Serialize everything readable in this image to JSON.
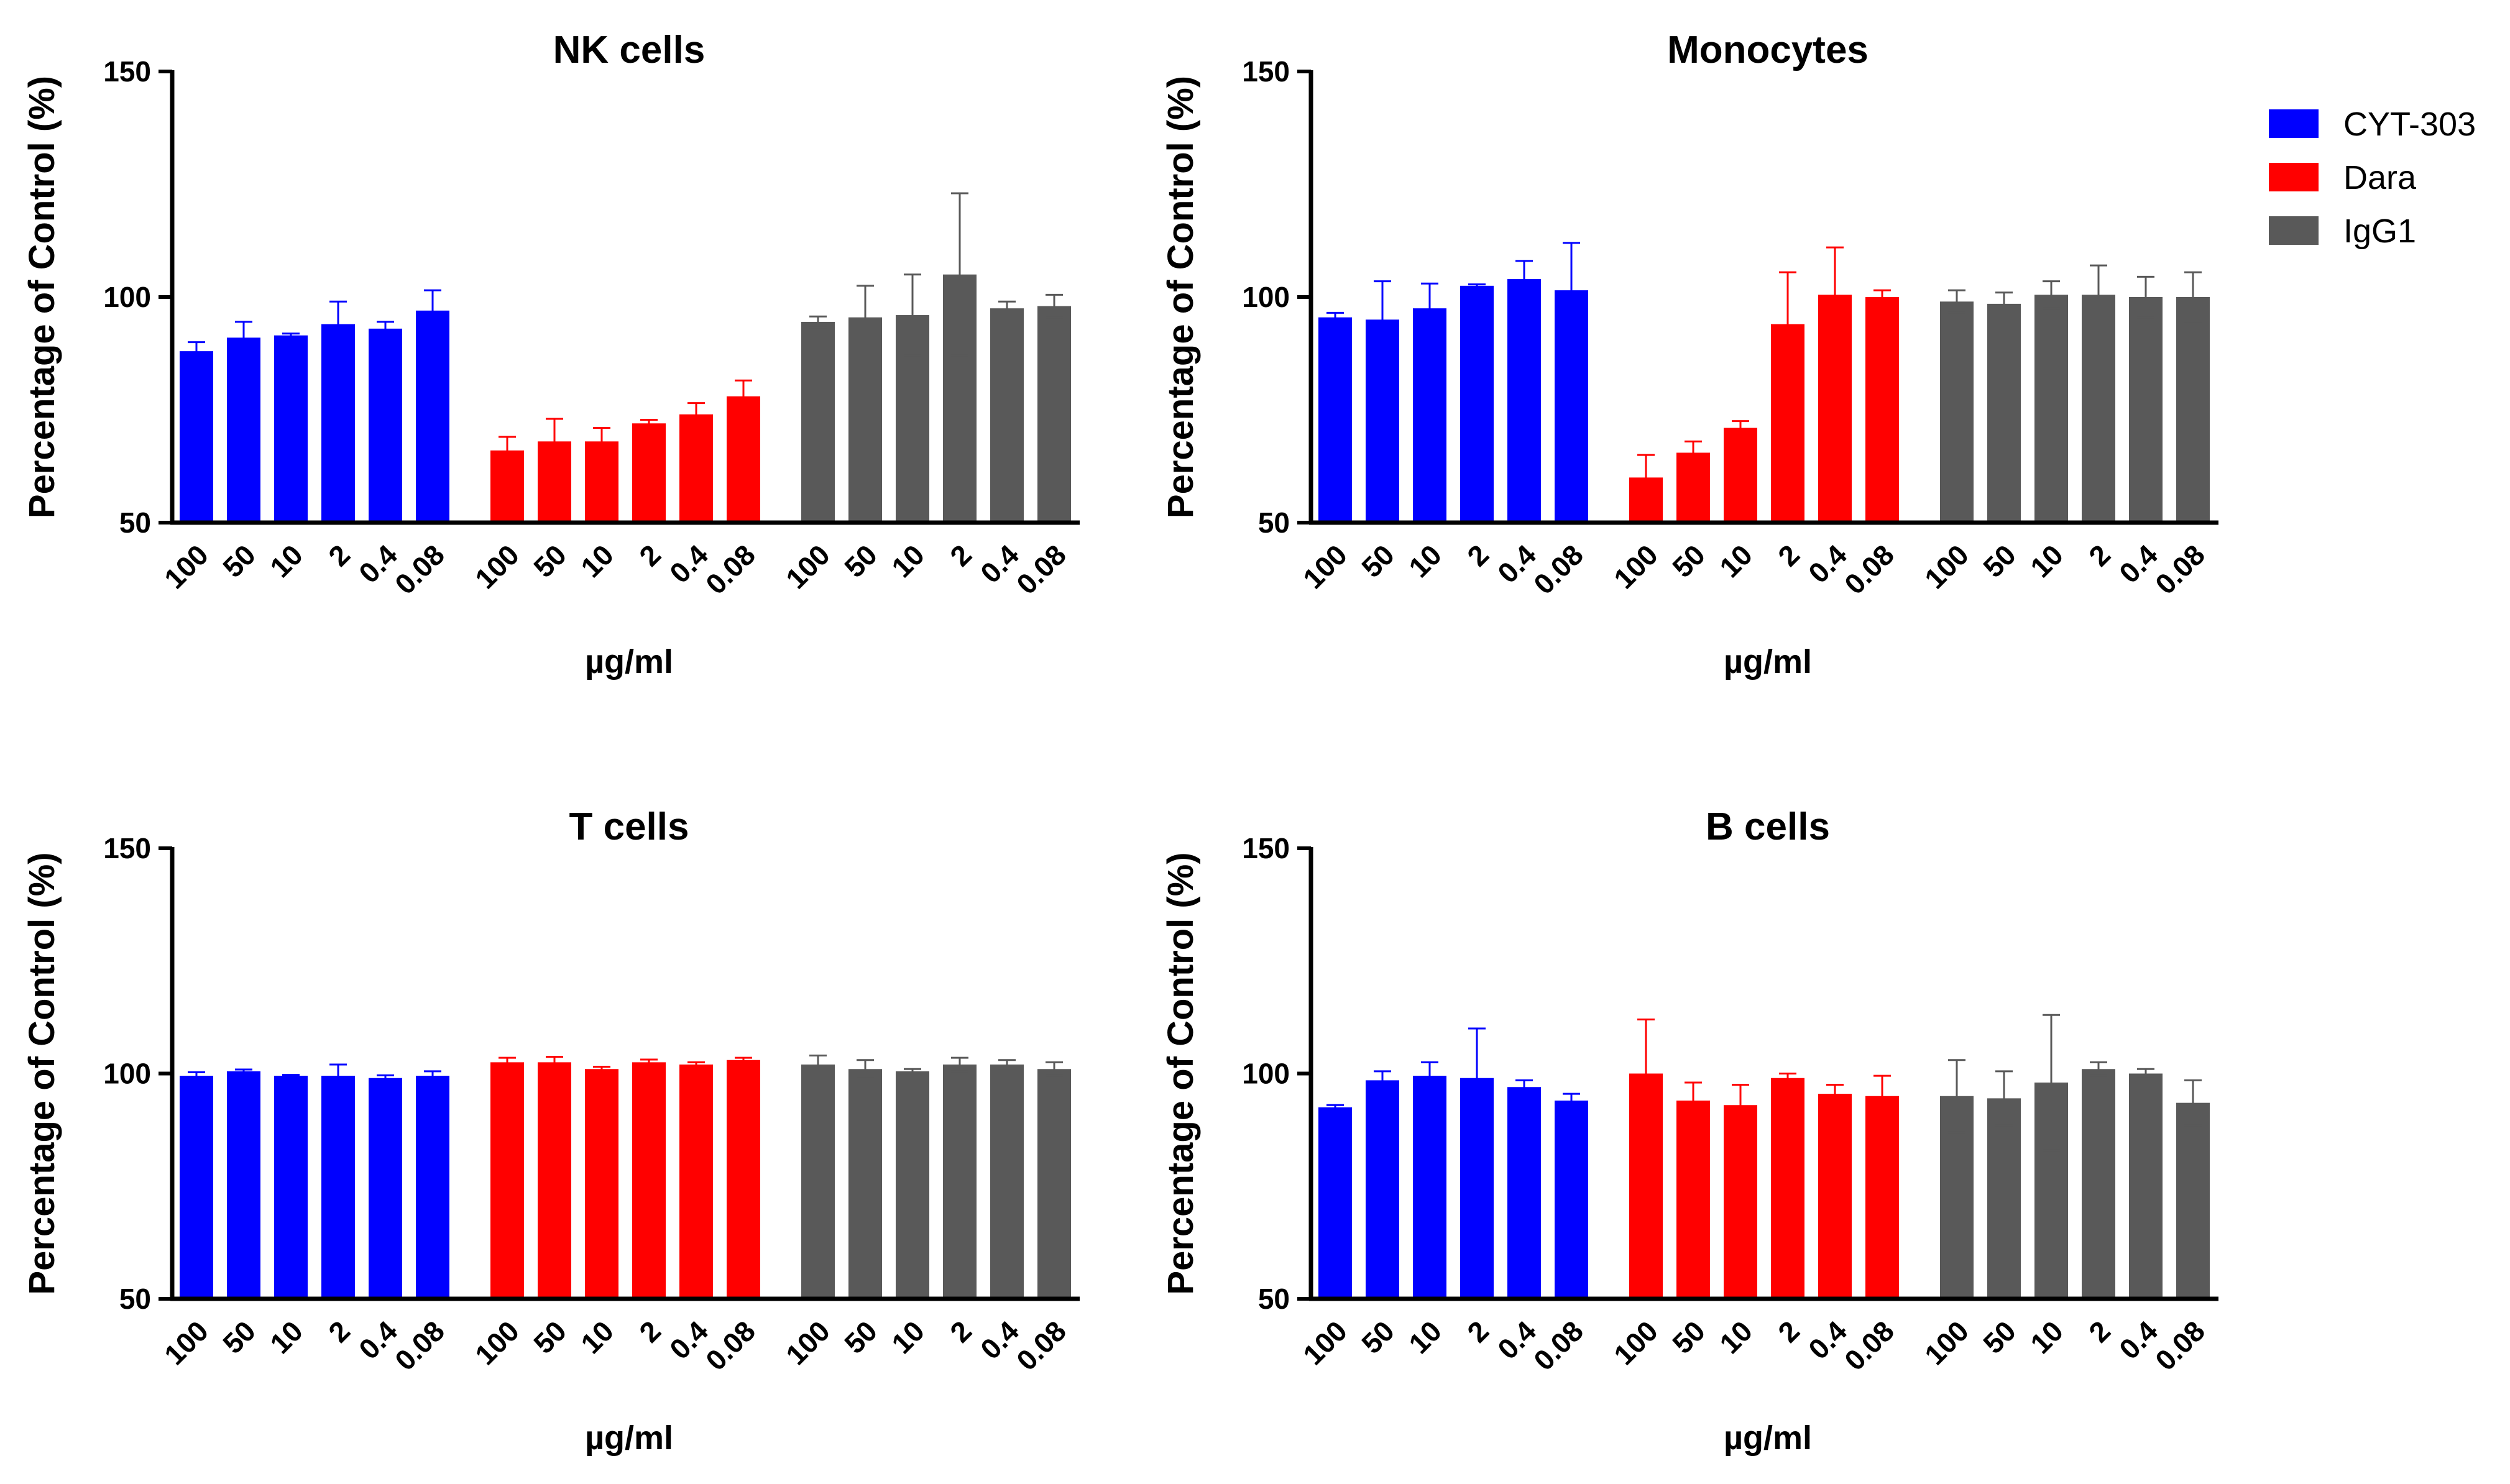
{
  "colors": {
    "CYT-303": "#0000ff",
    "Dara": "#ff0000",
    "IgG1": "#595959"
  },
  "legend": [
    "CYT-303",
    "Dara",
    "IgG1"
  ],
  "doses": [
    "100",
    "50",
    "10",
    "2",
    "0.4",
    "0.08"
  ],
  "chart_data": [
    {
      "type": "bar",
      "title": "NK cells",
      "xlabel": "µg/ml",
      "ylabel": "Percentage of Control (%)",
      "ylim": [
        50,
        150
      ],
      "yticks": [
        "50",
        "100",
        "150"
      ],
      "categories": [
        "100",
        "50",
        "10",
        "2",
        "0.4",
        "0.08"
      ],
      "series": [
        {
          "name": "CYT-303",
          "values": [
            88,
            91,
            91.5,
            94,
            93,
            97
          ],
          "errors": [
            2,
            3.5,
            0.4,
            5,
            1.5,
            4.5
          ]
        },
        {
          "name": "Dara",
          "values": [
            66,
            68,
            68,
            72,
            74,
            78
          ],
          "errors": [
            3,
            5,
            3,
            0.8,
            2.5,
            3.5
          ]
        },
        {
          "name": "IgG1",
          "values": [
            94.5,
            95.5,
            96,
            105,
            97.5,
            98
          ],
          "errors": [
            1.2,
            7,
            9,
            18,
            1.5,
            2.5
          ]
        }
      ]
    },
    {
      "type": "bar",
      "title": "Monocytes",
      "xlabel": "µg/ml",
      "ylabel": "Percentage of Control (%)",
      "ylim": [
        50,
        150
      ],
      "yticks": [
        "50",
        "100",
        "150"
      ],
      "categories": [
        "100",
        "50",
        "10",
        "2",
        "0.4",
        "0.08"
      ],
      "series": [
        {
          "name": "CYT-303",
          "values": [
            95.5,
            95,
            97.5,
            102.5,
            104,
            101.5
          ],
          "errors": [
            1,
            8.5,
            5.5,
            0.3,
            4,
            10.5
          ]
        },
        {
          "name": "Dara",
          "values": [
            60,
            65.5,
            71,
            94,
            100.5,
            100
          ],
          "errors": [
            5,
            2.5,
            1.5,
            11.5,
            10.5,
            1.5
          ]
        },
        {
          "name": "IgG1",
          "values": [
            99,
            98.5,
            100.5,
            100.5,
            100,
            100
          ],
          "errors": [
            2.5,
            2.5,
            3,
            6.5,
            4.5,
            5.5
          ]
        }
      ]
    },
    {
      "type": "bar",
      "title": "T cells",
      "xlabel": "µg/ml",
      "ylabel": "Percentage of Control (%)",
      "ylim": [
        50,
        150
      ],
      "yticks": [
        "50",
        "100",
        "150"
      ],
      "categories": [
        "100",
        "50",
        "10",
        "2",
        "0.4",
        "0.08"
      ],
      "series": [
        {
          "name": "CYT-303",
          "values": [
            99.5,
            100.5,
            99.5,
            99.5,
            99,
            99.5
          ],
          "errors": [
            0.8,
            0.4,
            0.2,
            2.5,
            0.6,
            1
          ]
        },
        {
          "name": "Dara",
          "values": [
            102.5,
            102.5,
            101,
            102.5,
            102,
            103
          ],
          "errors": [
            1,
            1.2,
            0.5,
            0.6,
            0.5,
            0.5
          ]
        },
        {
          "name": "IgG1",
          "values": [
            102,
            101,
            100.5,
            102,
            102,
            101
          ],
          "errors": [
            2,
            2,
            0.5,
            1.5,
            1,
            1.5
          ]
        }
      ]
    },
    {
      "type": "bar",
      "title": "B cells",
      "xlabel": "µg/ml",
      "ylabel": "Percentage of Control (%)",
      "ylim": [
        50,
        150
      ],
      "yticks": [
        "50",
        "100",
        "150"
      ],
      "categories": [
        "100",
        "50",
        "10",
        "2",
        "0.4",
        "0.08"
      ],
      "series": [
        {
          "name": "CYT-303",
          "values": [
            92.5,
            98.5,
            99.5,
            99,
            97,
            94
          ],
          "errors": [
            0.5,
            2,
            3,
            11,
            1.5,
            1.5
          ]
        },
        {
          "name": "Dara",
          "values": [
            100,
            94,
            93,
            99,
            95.5,
            95
          ],
          "errors": [
            12,
            4,
            4.5,
            1,
            2,
            4.5
          ]
        },
        {
          "name": "IgG1",
          "values": [
            95,
            94.5,
            98,
            101,
            100,
            93.5
          ],
          "errors": [
            8,
            6,
            15,
            1.5,
            1,
            5
          ]
        }
      ]
    }
  ]
}
